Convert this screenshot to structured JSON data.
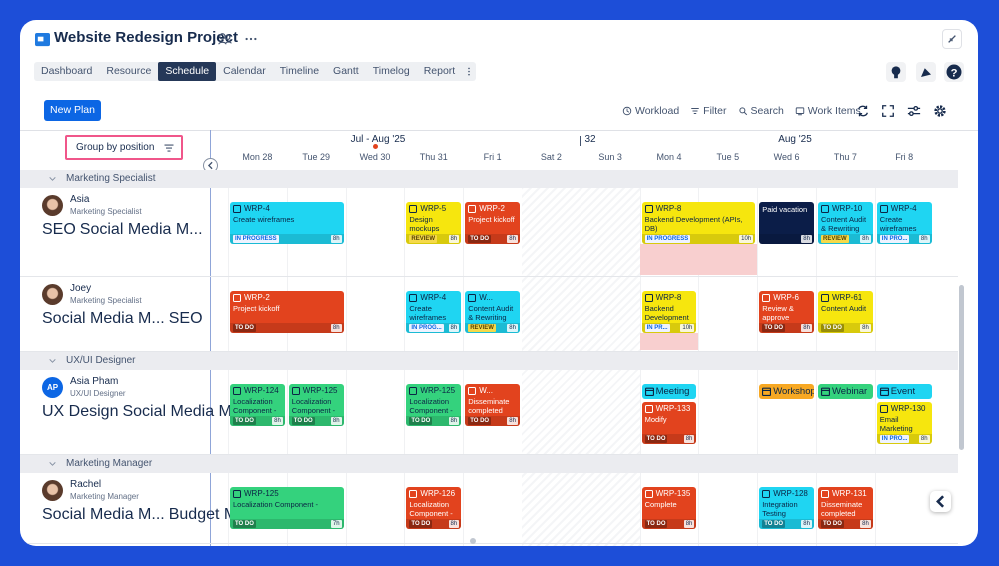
{
  "header": {
    "title": "Website Redesign Project"
  },
  "tabs": {
    "items": [
      "Dashboard",
      "Resource",
      "Schedule",
      "Calendar",
      "Timeline",
      "Gantt",
      "Timelog",
      "Report"
    ],
    "active": 2
  },
  "new_plan": "New Plan",
  "toolbar": [
    "Workload",
    "Filter",
    "Search",
    "Work Items"
  ],
  "group_by": "Group by position",
  "timeline": {
    "months": [
      "Jul - Aug '25",
      "32",
      "Aug '25"
    ],
    "days": [
      "Mon 28",
      "Tue 29",
      "Wed 30",
      "Thu 31",
      "Fri 1",
      "Sat 2",
      "Sun 3",
      "Mon 4",
      "Tue 5",
      "Wed 6",
      "Thu 7",
      "Fri 8"
    ],
    "today": 2,
    "weekend": [
      5,
      6
    ]
  },
  "groups": [
    {
      "name": "Marketing Specialist",
      "people": [
        {
          "name": "Asia",
          "role": "Marketing Specialist",
          "tags": [
            "SEO",
            "Social Media M..."
          ],
          "tasks": [
            {
              "id": "WRP-4",
              "title": "Create wireframes",
              "status": "IN PROGRESS",
              "hours": "8h",
              "start": 0,
              "span": 2,
              "color": "#1fd5f2"
            },
            {
              "id": "WRP-5",
              "title": "Design mockups",
              "status": "REVIEW",
              "hours": "8h",
              "start": 3,
              "span": 1,
              "color": "#f6e60e"
            },
            {
              "id": "WRP-2",
              "title": "Project kickoff",
              "status": "TO DO",
              "hours": "8h",
              "start": 4,
              "span": 1,
              "color": "#e2431e"
            },
            {
              "id": "WRP-8",
              "title": "Backend Development (APIs, DB)",
              "status": "IN PROGRESS",
              "hours": "10h",
              "start": 7,
              "span": 2,
              "color": "#f6e60e",
              "overload": true
            },
            {
              "title": "Paid vacation",
              "hours": "8h",
              "start": 9,
              "span": 1,
              "color": "#0b1d48"
            },
            {
              "id": "WRP-10",
              "title": "Content Audit & Rewriting",
              "status": "REVIEW",
              "hours": "8h",
              "start": 10,
              "span": 1,
              "color": "#1fd5f2"
            },
            {
              "id": "WRP-4",
              "title": "Create wireframes",
              "status": "IN PRO...",
              "hours": "8h",
              "start": 11,
              "span": 1,
              "color": "#1fd5f2"
            }
          ]
        },
        {
          "name": "Joey",
          "role": "Marketing Specialist",
          "tags": [
            "Social Media M...",
            "SEO"
          ],
          "tasks": [
            {
              "id": "WRP-2",
              "title": "Project kickoff",
              "status": "TO DO",
              "hours": "8h",
              "start": 0,
              "span": 2,
              "color": "#e2431e"
            },
            {
              "id": "WRP-4",
              "title": "Create wireframes",
              "status": "IN PROG...",
              "hours": "8h",
              "start": 3,
              "span": 1,
              "color": "#1fd5f2"
            },
            {
              "id": "W...",
              "title": "Content Audit & Rewriting",
              "status": "REVIEW",
              "hours": "8h",
              "start": 4,
              "span": 1,
              "color": "#1fd5f2"
            },
            {
              "id": "WRP-8",
              "title": "Backend Development (APIs, DB)",
              "status": "IN PR...",
              "hours": "10h",
              "start": 7,
              "span": 1,
              "color": "#f6e60e",
              "overload": true
            },
            {
              "id": "WRP-6",
              "title": "Review & approve",
              "status": "TO DO",
              "hours": "8h",
              "start": 9,
              "span": 1,
              "color": "#e2431e"
            },
            {
              "id": "WRP-61",
              "title": "Content Audit",
              "status": "TO DO",
              "hours": "8h",
              "start": 10,
              "span": 1,
              "color": "#f6e60e"
            }
          ]
        }
      ]
    },
    {
      "name": "UX/UI Designer",
      "people": [
        {
          "name": "Asia Pham",
          "initials": "AP",
          "role": "UX/UI Designer",
          "tags": [
            "UX Design",
            "Social Media M..."
          ],
          "tasks": [
            {
              "id": "WRP-124",
              "title": "Localization Component -",
              "status": "TO DO",
              "hours": "8h",
              "start": 0,
              "span": 1,
              "color": "#34d27d"
            },
            {
              "id": "WRP-125",
              "title": "Localization Component -",
              "status": "TO DO",
              "hours": "8h",
              "start": 1,
              "span": 1,
              "color": "#34d27d"
            },
            {
              "id": "WRP-125",
              "title": "Localization Component -",
              "status": "TO DO",
              "hours": "8h",
              "start": 3,
              "span": 1,
              "color": "#34d27d"
            },
            {
              "id": "W...",
              "title": "Disseminate completed",
              "status": "TO DO",
              "hours": "8h",
              "start": 4,
              "span": 1,
              "color": "#e2431e"
            },
            {
              "kind": "event",
              "title": "Meeting",
              "start": 7,
              "span": 1,
              "color": "#1fd5f2"
            },
            {
              "id": "WRP-133",
              "title": "Modify",
              "status": "TO DO",
              "hours": "8h",
              "start": 7,
              "span": 1,
              "color": "#e2431e"
            },
            {
              "kind": "event",
              "title": "Workshop",
              "start": 9,
              "span": 1,
              "color": "#f7a823"
            },
            {
              "kind": "event",
              "title": "Webinar",
              "start": 10,
              "span": 1,
              "color": "#34d27d"
            },
            {
              "kind": "event",
              "title": "Event",
              "start": 11,
              "span": 1,
              "color": "#1fd5f2"
            },
            {
              "id": "WRP-130",
              "title": "Email Marketing",
              "status": "IN PRO...",
              "hours": "8h",
              "start": 11,
              "span": 1,
              "color": "#f6e60e"
            }
          ]
        }
      ]
    },
    {
      "name": "Marketing Manager",
      "people": [
        {
          "name": "Rachel",
          "role": "Marketing Manager",
          "tags": [
            "Social Media M...",
            "Budget Manage..."
          ],
          "tasks": [
            {
              "id": "WRP-125",
              "title": "Localization Component -",
              "status": "TO DO",
              "hours": "7h",
              "start": 0,
              "span": 2,
              "color": "#34d27d"
            },
            {
              "id": "WRP-126",
              "title": "Localization Component -",
              "status": "TO DO",
              "hours": "8h",
              "start": 3,
              "span": 1,
              "color": "#e2431e"
            },
            {
              "id": "WRP-135",
              "title": "Complete",
              "status": "TO DO",
              "hours": "8h",
              "start": 7,
              "span": 1,
              "color": "#e2431e"
            },
            {
              "id": "WRP-128",
              "title": "Integration Testing",
              "status": "TO DO",
              "hours": "8h",
              "start": 9,
              "span": 1,
              "color": "#1fd5f2"
            },
            {
              "id": "WRP-131",
              "title": "Disseminate completed",
              "status": "TO DO",
              "hours": "8h",
              "start": 10,
              "span": 1,
              "color": "#e2431e"
            }
          ]
        }
      ]
    }
  ]
}
